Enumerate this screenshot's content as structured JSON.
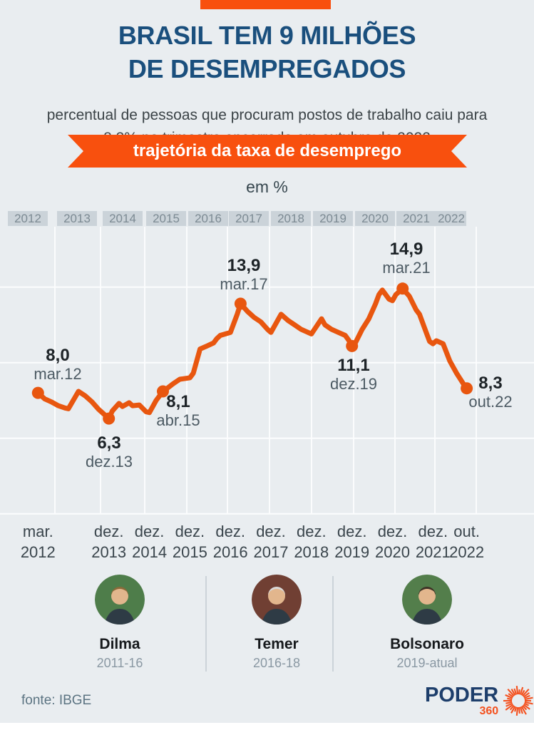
{
  "page": {
    "background_color": "#e9edf0",
    "accent_orange": "#f8500e",
    "title_blue": "#1a4f7d"
  },
  "header": {
    "title_line1": "BRASIL TEM 9 MILHÕES",
    "title_line2": "DE DESEMPREGADOS",
    "subtitle_line1": "percentual de pessoas que procuram postos de trabalho caiu para",
    "subtitle_line2": "8,3% no trimestre encerrado em outubro de 2022"
  },
  "ribbon": {
    "label": "trajetória da taxa de desemprego",
    "color": "#f8500e"
  },
  "chart_data": {
    "type": "line",
    "title": "trajetória da taxa de desemprego",
    "unit_label": "em %",
    "line_color": "#e8560f",
    "ylim": [
      0,
      20
    ],
    "y_gridlines": [
      0,
      5,
      10,
      15
    ],
    "grid": true,
    "year_bands": [
      "2012",
      "2013",
      "2014",
      "2015",
      "2016",
      "2017",
      "2018",
      "2019",
      "2020",
      "2021",
      "2022"
    ],
    "x_unit": "months since quarter ending mar/2012",
    "x_start": "mar/2012",
    "x_end": "out/2022",
    "series": [
      [
        0,
        8.0
      ],
      [
        2,
        7.6
      ],
      [
        4,
        7.4
      ],
      [
        6,
        7.15
      ],
      [
        8,
        7.0
      ],
      [
        9,
        6.95
      ],
      [
        12,
        8.1
      ],
      [
        14,
        7.8
      ],
      [
        16,
        7.4
      ],
      [
        18,
        6.9
      ],
      [
        20,
        6.5
      ],
      [
        21,
        6.3
      ],
      [
        22,
        6.8
      ],
      [
        24,
        7.3
      ],
      [
        25,
        7.1
      ],
      [
        27,
        7.35
      ],
      [
        28,
        7.15
      ],
      [
        30,
        7.2
      ],
      [
        32,
        6.75
      ],
      [
        33,
        6.7
      ],
      [
        35,
        7.5
      ],
      [
        37,
        8.1
      ],
      [
        38,
        8.25
      ],
      [
        40,
        8.6
      ],
      [
        42,
        8.9
      ],
      [
        45,
        9.0
      ],
      [
        46,
        9.3
      ],
      [
        48,
        10.9
      ],
      [
        50,
        11.1
      ],
      [
        52,
        11.3
      ],
      [
        53,
        11.6
      ],
      [
        54,
        11.8
      ],
      [
        57,
        12.0
      ],
      [
        58,
        12.6
      ],
      [
        59,
        13.2
      ],
      [
        60,
        13.9
      ],
      [
        62,
        13.4
      ],
      [
        64,
        13.0
      ],
      [
        66,
        12.7
      ],
      [
        68,
        12.2
      ],
      [
        69,
        12.0
      ],
      [
        72,
        13.2
      ],
      [
        74,
        12.8
      ],
      [
        76,
        12.5
      ],
      [
        78,
        12.2
      ],
      [
        80,
        12.0
      ],
      [
        81,
        11.9
      ],
      [
        84,
        12.9
      ],
      [
        85,
        12.5
      ],
      [
        87,
        12.2
      ],
      [
        89,
        12.0
      ],
      [
        91,
        11.8
      ],
      [
        92,
        11.5
      ],
      [
        93,
        11.1
      ],
      [
        94,
        11.3
      ],
      [
        96,
        12.2
      ],
      [
        98,
        12.9
      ],
      [
        100,
        13.9
      ],
      [
        101,
        14.5
      ],
      [
        102,
        14.8
      ],
      [
        104,
        14.2
      ],
      [
        105,
        14.1
      ],
      [
        106,
        14.5
      ],
      [
        108,
        14.9
      ],
      [
        110,
        14.4
      ],
      [
        112,
        13.5
      ],
      [
        113,
        13.2
      ],
      [
        115,
        12.0
      ],
      [
        116,
        11.4
      ],
      [
        117,
        11.25
      ],
      [
        118,
        11.45
      ],
      [
        120,
        11.25
      ],
      [
        122,
        10.1
      ],
      [
        124,
        9.3
      ],
      [
        126,
        8.6
      ],
      [
        127,
        8.3
      ]
    ],
    "annotations": [
      {
        "value": "8,0",
        "date": "mar.12",
        "t": 0,
        "v": 8.0
      },
      {
        "value": "6,3",
        "date": "dez.13",
        "t": 21,
        "v": 6.3
      },
      {
        "value": "8,1",
        "date": "abr.15",
        "t": 37,
        "v": 8.1
      },
      {
        "value": "13,9",
        "date": "mar.17",
        "t": 60,
        "v": 13.9
      },
      {
        "value": "11,1",
        "date": "dez.19",
        "t": 93,
        "v": 11.1
      },
      {
        "value": "14,9",
        "date": "mar.21",
        "t": 108,
        "v": 14.9
      },
      {
        "value": "8,3",
        "date": "out.22",
        "t": 127,
        "v": 8.3
      }
    ],
    "x_ticks": [
      {
        "month": "mar.",
        "year": "2012",
        "t": 0
      },
      {
        "month": "dez.",
        "year": "2013",
        "t": 21
      },
      {
        "month": "dez.",
        "year": "2014",
        "t": 33
      },
      {
        "month": "dez.",
        "year": "2015",
        "t": 45
      },
      {
        "month": "dez.",
        "year": "2016",
        "t": 57
      },
      {
        "month": "dez.",
        "year": "2017",
        "t": 69
      },
      {
        "month": "dez.",
        "year": "2018",
        "t": 81
      },
      {
        "month": "dez.",
        "year": "2019",
        "t": 93
      },
      {
        "month": "dez.",
        "year": "2020",
        "t": 105
      },
      {
        "month": "dez.",
        "year": "2021",
        "t": 117
      },
      {
        "month": "out.",
        "year": "2022",
        "t": 127
      }
    ],
    "legend_position": "none"
  },
  "presidents": [
    {
      "name": "Dilma",
      "period": "2011-16"
    },
    {
      "name": "Temer",
      "period": "2016-18"
    },
    {
      "name": "Bolsonaro",
      "period": "2019-atual"
    }
  ],
  "footer": {
    "source": "fonte: IBGE",
    "brand": "PODER",
    "brand_number": "360",
    "brand_navy": "#1d3e6b",
    "brand_orange": "#f4511e"
  }
}
